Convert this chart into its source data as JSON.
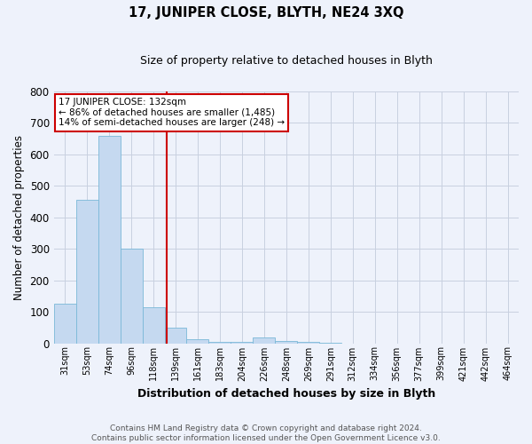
{
  "title": "17, JUNIPER CLOSE, BLYTH, NE24 3XQ",
  "subtitle": "Size of property relative to detached houses in Blyth",
  "xlabel": "Distribution of detached houses by size in Blyth",
  "ylabel": "Number of detached properties",
  "footer_line1": "Contains HM Land Registry data © Crown copyright and database right 2024.",
  "footer_line2": "Contains public sector information licensed under the Open Government Licence v3.0.",
  "annotation_line1": "17 JUNIPER CLOSE: 132sqm",
  "annotation_line2": "← 86% of detached houses are smaller (1,485)",
  "annotation_line3": "14% of semi-detached houses are larger (248) →",
  "bar_color": "#c5d9f0",
  "bar_edge_color": "#7ab8d8",
  "property_line_color": "#cc0000",
  "annotation_box_color": "#ffffff",
  "annotation_box_edge": "#cc0000",
  "background_color": "#eef2fb",
  "grid_color": "#c8d0e0",
  "categories": [
    "31sqm",
    "53sqm",
    "74sqm",
    "96sqm",
    "118sqm",
    "139sqm",
    "161sqm",
    "183sqm",
    "204sqm",
    "226sqm",
    "248sqm",
    "269sqm",
    "291sqm",
    "312sqm",
    "334sqm",
    "356sqm",
    "377sqm",
    "399sqm",
    "421sqm",
    "442sqm",
    "464sqm"
  ],
  "values": [
    125,
    455,
    660,
    300,
    115,
    50,
    12,
    3,
    3,
    18,
    8,
    4,
    1,
    0,
    0,
    0,
    0,
    0,
    0,
    0,
    0
  ],
  "ylim": [
    0,
    800
  ],
  "yticks": [
    0,
    100,
    200,
    300,
    400,
    500,
    600,
    700,
    800
  ],
  "property_line_x": 4.6
}
